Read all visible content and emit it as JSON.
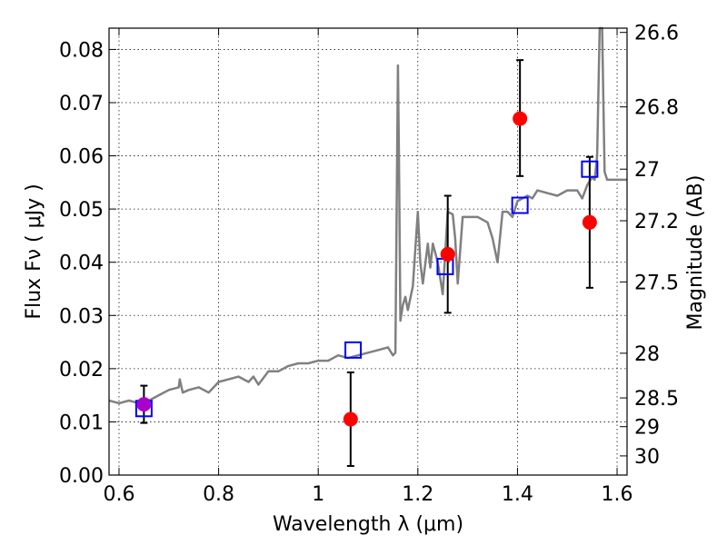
{
  "chart_data": {
    "type": "line",
    "xlabel": "Wavelength  λ (μm)",
    "ylabel": "Flux  Fν  ( μJy )",
    "y2label": "Magnitude (AB)",
    "xlim": [
      0.58,
      1.62
    ],
    "ylim": [
      0.0,
      0.084
    ],
    "grid": true,
    "x_ticks": [
      0.6,
      0.8,
      1.0,
      1.2,
      1.4,
      1.6
    ],
    "x_tick_labels": [
      "0.6",
      "0.8",
      "1",
      "1.2",
      "1.4",
      "1.6"
    ],
    "y_ticks": [
      0.0,
      0.01,
      0.02,
      0.03,
      0.04,
      0.05,
      0.06,
      0.07,
      0.08
    ],
    "y_tick_labels": [
      "0.00",
      "0.01",
      "0.02",
      "0.03",
      "0.04",
      "0.05",
      "0.06",
      "0.07",
      "0.08"
    ],
    "y2_tick_labels": [
      "26.6",
      "26.8",
      "27",
      "27.2",
      "27.5",
      "28",
      "28.5",
      "29",
      "30"
    ],
    "y2_tick_values_magnitude": [
      26.6,
      26.8,
      27.0,
      27.2,
      27.5,
      28.0,
      28.5,
      29.0,
      30.0
    ],
    "y2_tick_flux": [
      0.0832,
      0.0692,
      0.0575,
      0.0478,
      0.0363,
      0.0229,
      0.0145,
      0.0091,
      0.0036
    ],
    "model_spectrum": {
      "color": "#808080",
      "x": [
        0.58,
        0.6,
        0.62,
        0.64,
        0.66,
        0.68,
        0.7,
        0.72,
        0.722,
        0.728,
        0.74,
        0.76,
        0.78,
        0.8,
        0.82,
        0.84,
        0.86,
        0.87,
        0.88,
        0.9,
        0.92,
        0.94,
        0.96,
        0.98,
        1.0,
        1.02,
        1.04,
        1.06,
        1.08,
        1.1,
        1.12,
        1.14,
        1.15,
        1.155,
        1.16,
        1.162,
        1.165,
        1.17,
        1.175,
        1.18,
        1.19,
        1.2,
        1.205,
        1.21,
        1.22,
        1.225,
        1.23,
        1.24,
        1.25,
        1.26,
        1.27,
        1.275,
        1.28,
        1.29,
        1.3,
        1.32,
        1.34,
        1.35,
        1.36,
        1.37,
        1.38,
        1.39,
        1.4,
        1.42,
        1.43,
        1.44,
        1.46,
        1.48,
        1.5,
        1.52,
        1.53,
        1.54,
        1.55,
        1.555,
        1.56,
        1.565,
        1.57,
        1.575,
        1.58,
        1.6,
        1.62
      ],
      "y": [
        0.014,
        0.0135,
        0.014,
        0.0135,
        0.014,
        0.015,
        0.016,
        0.0165,
        0.018,
        0.0155,
        0.016,
        0.0165,
        0.0155,
        0.0175,
        0.018,
        0.0185,
        0.0175,
        0.0185,
        0.017,
        0.0195,
        0.0195,
        0.0205,
        0.021,
        0.021,
        0.0215,
        0.0215,
        0.0225,
        0.022,
        0.0225,
        0.023,
        0.0235,
        0.024,
        0.0225,
        0.023,
        0.077,
        0.06,
        0.029,
        0.032,
        0.0335,
        0.031,
        0.0355,
        0.0495,
        0.04,
        0.036,
        0.0435,
        0.039,
        0.0435,
        0.04,
        0.034,
        0.0495,
        0.049,
        0.0445,
        0.036,
        0.0485,
        0.0485,
        0.0485,
        0.0475,
        0.0445,
        0.04,
        0.0495,
        0.0495,
        0.0485,
        0.0515,
        0.0525,
        0.052,
        0.0535,
        0.053,
        0.0525,
        0.0535,
        0.0535,
        0.052,
        0.0545,
        0.056,
        0.0555,
        0.06,
        0.084,
        0.084,
        0.057,
        0.0555,
        0.0555,
        0.0555
      ]
    },
    "observed_points": {
      "color": "#ff0000",
      "x": [
        0.65,
        1.065,
        1.26,
        1.405,
        1.545
      ],
      "y": [
        0.0133,
        0.0105,
        0.0415,
        0.067,
        0.0475
      ],
      "y_err_low": [
        0.0035,
        0.0088,
        0.011,
        0.0108,
        0.0123
      ],
      "y_err_high": [
        0.0035,
        0.0088,
        0.011,
        0.011,
        0.0123
      ]
    },
    "model_photometry": {
      "color": "#0000ff",
      "x": [
        0.65,
        1.07,
        1.255,
        1.405,
        1.545
      ],
      "y": [
        0.0125,
        0.0235,
        0.0392,
        0.0507,
        0.0575
      ]
    }
  }
}
